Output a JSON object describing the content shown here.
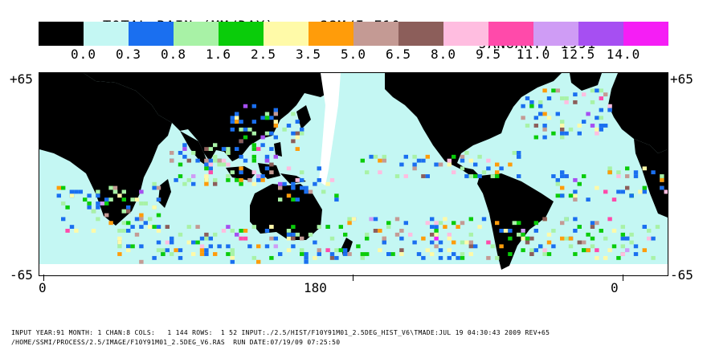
{
  "header": {
    "title_left": "TOTAL RAIN (MM/DAY)  -  SSM/I F10",
    "title_right": "JANUARY, 1991"
  },
  "color_scale": {
    "colors": [
      "#000000",
      "#c4f7f3",
      "#1a6ff0",
      "#a8f2a6",
      "#0acc0a",
      "#fffaa8",
      "#ff9c0a",
      "#c49a94",
      "#8c5e5a",
      "#ffbde0",
      "#ff4aaa",
      "#cf9cf5",
      "#a64ff2",
      "#f51ef5"
    ],
    "labels": [
      "0.0",
      "0.3",
      "0.8",
      "1.6",
      "2.5",
      "3.5",
      "5.0",
      "6.5",
      "8.0",
      "9.5",
      "11.0",
      "12.5",
      "14.0"
    ]
  },
  "axes": {
    "lat_top": "+65",
    "lat_bottom": "-65",
    "lon_labels": [
      "0",
      "180",
      "0"
    ]
  },
  "footer": {
    "line1": "INPUT YEAR:91 MONTH: 1 CHAN:8 COLS:   1 144 ROWS:  1 52 INPUT:./2.5/HIST/F10Y91M01_2.5DEG_HIST_V6\\TMADE:JUL 19 04:30:43 2009 REV+65",
    "line2": "/HOME/SSMI/PROCESS/2.5/IMAGE/F10Y91M01_2.5DEG_V6.RAS  RUN DATE:07/19/09 07:25:50"
  }
}
